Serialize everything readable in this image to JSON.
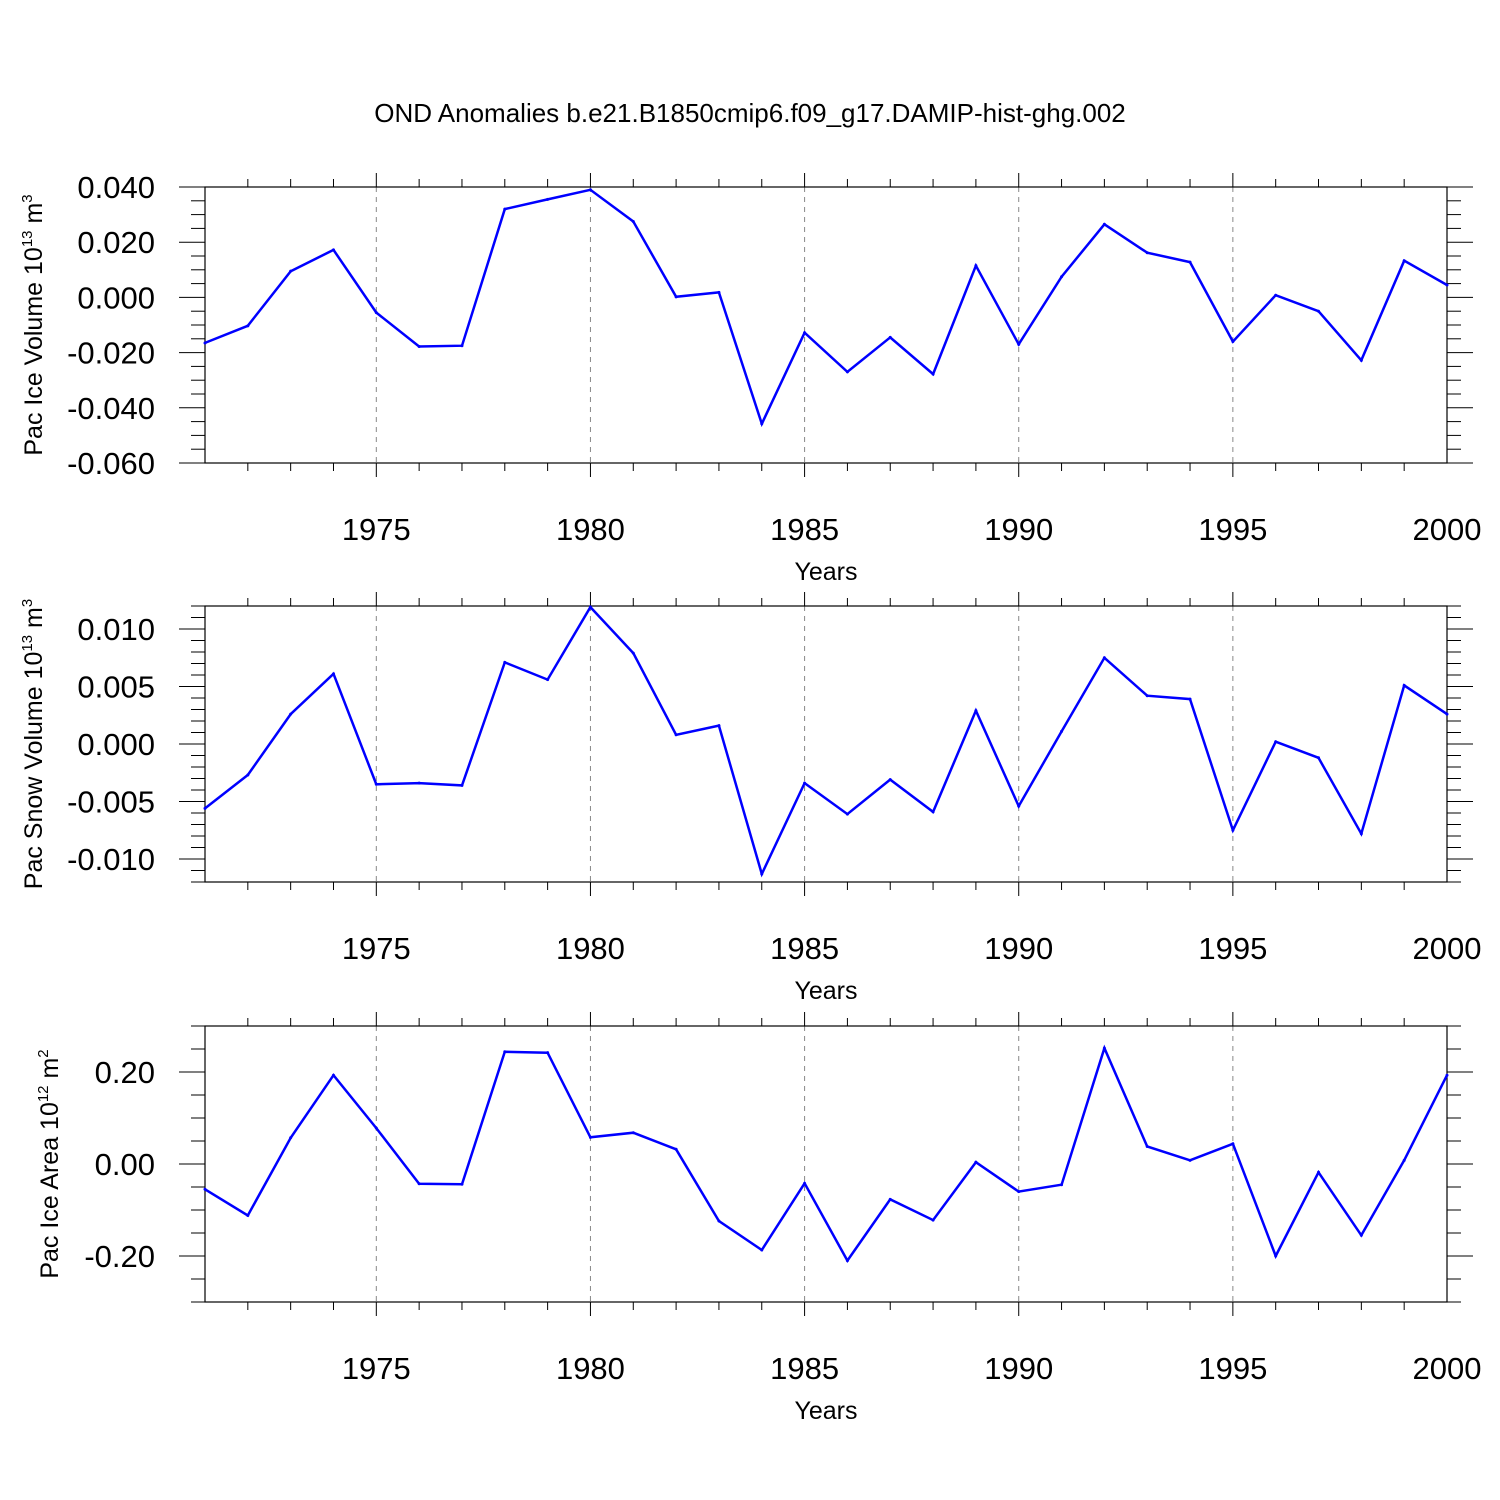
{
  "title": "OND Anomalies b.e21.B1850cmip6.f09_g17.DAMIP-hist-ghg.002",
  "line_color": "#0000ff",
  "chart_data": [
    {
      "type": "line",
      "ylabel": {
        "main": "Pac Ice Volume 10",
        "sup": "13",
        "unit": " m",
        "unit_sup": "3"
      },
      "xlabel": "Years",
      "xlim": [
        1971,
        2000
      ],
      "ylim": [
        -0.06,
        0.04
      ],
      "x_ticks": [
        1975,
        1980,
        1985,
        1990,
        1995,
        2000
      ],
      "x_tick_labels": [
        "1975",
        "1980",
        "1985",
        "1990",
        "1995",
        "2000"
      ],
      "y_ticks": [
        0.04,
        0.02,
        0.0,
        -0.02,
        -0.04,
        -0.06
      ],
      "y_tick_labels": [
        "0.040",
        "0.020",
        "0.000",
        "-0.020",
        "-0.040",
        "-0.060"
      ],
      "y_minor_step": 0.005,
      "grid": "vertical dashed at major x ticks",
      "x": [
        1971,
        1972,
        1973,
        1974,
        1975,
        1976,
        1977,
        1978,
        1979,
        1980,
        1981,
        1982,
        1983,
        1984,
        1985,
        1986,
        1987,
        1988,
        1989,
        1990,
        1991,
        1992,
        1993,
        1994,
        1995,
        1996,
        1997,
        1998,
        1999,
        2000
      ],
      "values": [
        -0.0165,
        -0.0103,
        0.0095,
        0.0172,
        -0.0055,
        -0.0178,
        -0.0175,
        0.032,
        0.0355,
        0.039,
        0.0275,
        0.0002,
        0.0018,
        -0.0458,
        -0.0128,
        -0.027,
        -0.0145,
        -0.0278,
        0.0115,
        -0.017,
        0.0075,
        0.0265,
        0.0162,
        0.0128,
        -0.016,
        0.0008,
        -0.005,
        -0.0228,
        0.0133,
        0.0045
      ]
    },
    {
      "type": "line",
      "ylabel": {
        "main": "Pac Snow Volume 10",
        "sup": "13",
        "unit": " m",
        "unit_sup": "3"
      },
      "xlabel": "Years",
      "xlim": [
        1971,
        2000
      ],
      "ylim": [
        -0.012,
        0.012
      ],
      "x_ticks": [
        1975,
        1980,
        1985,
        1990,
        1995,
        2000
      ],
      "x_tick_labels": [
        "1975",
        "1980",
        "1985",
        "1990",
        "1995",
        "2000"
      ],
      "y_ticks": [
        0.01,
        0.005,
        0.0,
        -0.005,
        -0.01
      ],
      "y_tick_labels": [
        "0.010",
        "0.005",
        "0.000",
        "-0.005",
        "-0.010"
      ],
      "y_minor_step": 0.001,
      "grid": "vertical dashed at major x ticks",
      "x": [
        1971,
        1972,
        1973,
        1974,
        1975,
        1976,
        1977,
        1978,
        1979,
        1980,
        1981,
        1982,
        1983,
        1984,
        1985,
        1986,
        1987,
        1988,
        1989,
        1990,
        1991,
        1992,
        1993,
        1994,
        1995,
        1996,
        1997,
        1998,
        1999,
        2000
      ],
      "values": [
        -0.0056,
        -0.0027,
        0.0026,
        0.0061,
        -0.0035,
        -0.0034,
        -0.0036,
        0.0071,
        0.0056,
        0.0119,
        0.0079,
        0.0008,
        0.0016,
        -0.0113,
        -0.0034,
        -0.0061,
        -0.0031,
        -0.0059,
        0.0029,
        -0.0054,
        0.0011,
        0.0075,
        0.0042,
        0.0039,
        -0.0075,
        0.0002,
        -0.0012,
        -0.0078,
        0.0051,
        0.0026
      ]
    },
    {
      "type": "line",
      "ylabel": {
        "main": "Pac Ice Area 10",
        "sup": "12",
        "unit": " m",
        "unit_sup": "2"
      },
      "xlabel": "Years",
      "xlim": [
        1971,
        2000
      ],
      "ylim": [
        -0.3,
        0.3
      ],
      "x_ticks": [
        1975,
        1980,
        1985,
        1990,
        1995,
        2000
      ],
      "x_tick_labels": [
        "1975",
        "1980",
        "1985",
        "1990",
        "1995",
        "2000"
      ],
      "y_ticks": [
        0.2,
        0.0,
        -0.2
      ],
      "y_tick_labels": [
        "0.20",
        "0.00",
        "-0.20"
      ],
      "y_minor_step": 0.05,
      "grid": "vertical dashed at major x ticks",
      "x": [
        1971,
        1972,
        1973,
        1974,
        1975,
        1976,
        1977,
        1978,
        1979,
        1980,
        1981,
        1982,
        1983,
        1984,
        1985,
        1986,
        1987,
        1988,
        1989,
        1990,
        1991,
        1992,
        1993,
        1994,
        1995,
        1996,
        1997,
        1998,
        1999,
        2000
      ],
      "values": [
        -0.055,
        -0.112,
        0.057,
        0.193,
        0.078,
        -0.043,
        -0.044,
        0.244,
        0.242,
        0.058,
        0.068,
        0.032,
        -0.124,
        -0.187,
        -0.042,
        -0.21,
        -0.077,
        -0.122,
        0.004,
        -0.06,
        -0.045,
        0.252,
        0.038,
        0.008,
        0.044,
        -0.2,
        -0.018,
        -0.155,
        0.008,
        0.193
      ]
    }
  ]
}
